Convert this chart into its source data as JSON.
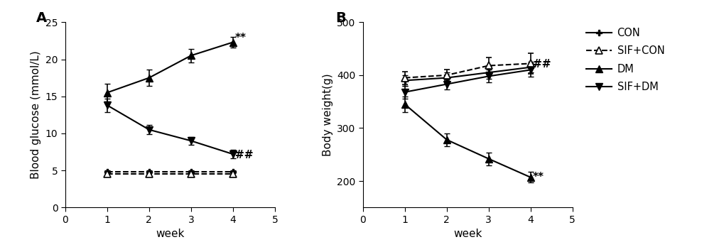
{
  "weeks": [
    1,
    2,
    3,
    4
  ],
  "glucose_DM": [
    15.5,
    17.5,
    20.5,
    22.3
  ],
  "glucose_DM_err": [
    1.2,
    1.1,
    0.9,
    0.7
  ],
  "glucose_SIFDM": [
    13.8,
    10.5,
    9.0,
    7.2
  ],
  "glucose_SIFDM_err": [
    0.9,
    0.6,
    0.5,
    0.6
  ],
  "glucose_CON": [
    4.8,
    4.8,
    4.8,
    4.8
  ],
  "glucose_CON_err": [
    0.2,
    0.2,
    0.2,
    0.2
  ],
  "glucose_SIFCON": [
    4.5,
    4.5,
    4.5,
    4.5
  ],
  "glucose_SIFCON_err": [
    0.2,
    0.2,
    0.2,
    0.2
  ],
  "weight_CON": [
    390,
    395,
    405,
    415
  ],
  "weight_CON_err": [
    10,
    10,
    12,
    10
  ],
  "weight_SIFCON": [
    395,
    400,
    418,
    422
  ],
  "weight_SIFCON_err": [
    12,
    10,
    15,
    20
  ],
  "weight_DM": [
    345,
    278,
    242,
    207
  ],
  "weight_DM_err": [
    15,
    12,
    12,
    10
  ],
  "weight_SIFDM": [
    368,
    383,
    398,
    410
  ],
  "weight_SIFDM_err": [
    12,
    10,
    12,
    13
  ],
  "xlim": [
    0,
    5
  ],
  "glucose_ylim": [
    0,
    25
  ],
  "weight_ylim": [
    150,
    500
  ],
  "glucose_yticks": [
    0,
    5,
    10,
    15,
    20,
    25
  ],
  "weight_yticks": [
    200,
    300,
    400,
    500
  ],
  "panel_A_label": "A",
  "panel_B_label": "B",
  "xlabel": "week",
  "ylabel_A": "Blood glucose (mmol/L)",
  "ylabel_B": "Body weight(g)",
  "annot_DM_glucose": "**",
  "annot_SIFDM_glucose": "##",
  "annot_DM_weight": "**",
  "annot_SIFDM_weight": "##",
  "color": "#000000",
  "linewidth": 1.5,
  "markersize": 7,
  "capsize": 3,
  "elinewidth": 1.2,
  "fontsize_tick": 10,
  "fontsize_label": 11,
  "fontsize_panel": 14
}
